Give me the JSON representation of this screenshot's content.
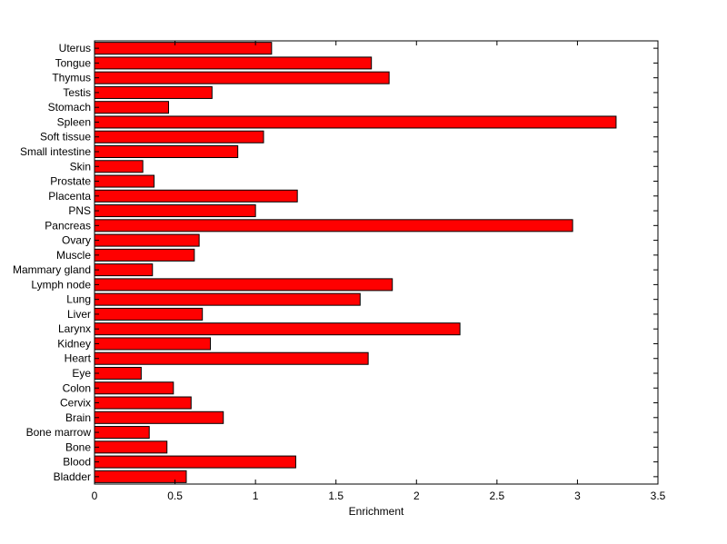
{
  "chart_data": {
    "type": "bar",
    "orientation": "horizontal",
    "title": "",
    "xlabel": "Enrichment",
    "ylabel": "",
    "xlim": [
      0,
      3.5
    ],
    "x_ticks": [
      0,
      0.5,
      1,
      1.5,
      2,
      2.5,
      3,
      3.5
    ],
    "x_tick_labels": [
      "0",
      "0.5",
      "1",
      "1.5",
      "2",
      "2.5",
      "3",
      "3.5"
    ],
    "grid": false,
    "legend": "none",
    "categories": [
      "Uterus",
      "Tongue",
      "Thymus",
      "Testis",
      "Stomach",
      "Spleen",
      "Soft tissue",
      "Small intestine",
      "Skin",
      "Prostate",
      "Placenta",
      "PNS",
      "Pancreas",
      "Ovary",
      "Muscle",
      "Mammary gland",
      "Lymph node",
      "Lung",
      "Liver",
      "Larynx",
      "Kidney",
      "Heart",
      "Eye",
      "Colon",
      "Cervix",
      "Brain",
      "Bone marrow",
      "Bone",
      "Blood",
      "Bladder"
    ],
    "values": [
      1.1,
      1.72,
      1.83,
      0.73,
      0.46,
      3.24,
      1.05,
      0.89,
      0.3,
      0.37,
      1.26,
      1.0,
      2.97,
      0.65,
      0.62,
      0.36,
      1.85,
      1.65,
      0.67,
      2.27,
      0.72,
      1.7,
      0.29,
      0.49,
      0.6,
      0.8,
      0.34,
      0.45,
      1.25,
      0.57
    ]
  },
  "colors": {
    "bar_fill": "#ff0000",
    "bar_stroke": "#000000",
    "axes": "#000000",
    "background": "#ffffff"
  }
}
